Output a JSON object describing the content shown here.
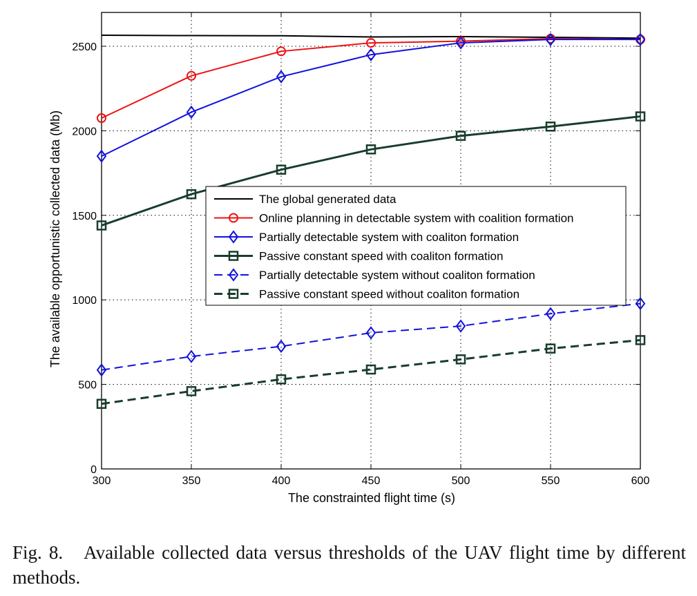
{
  "chart_data": {
    "type": "line",
    "xlabel": "The constrainted flight time (s)",
    "ylabel": "The available opportunistic collected data (Mb)",
    "xlim": [
      300,
      600
    ],
    "ylim": [
      0,
      2700
    ],
    "xticks": [
      300,
      350,
      400,
      450,
      500,
      550,
      600
    ],
    "yticks": [
      0,
      500,
      1000,
      1500,
      2000,
      2500
    ],
    "grid": true,
    "legend_position": "center",
    "x": [
      300,
      350,
      400,
      450,
      500,
      550,
      600
    ],
    "series": [
      {
        "name": "The global generated data",
        "values": [
          2565,
          2563,
          2562,
          2555,
          2557,
          2553,
          2548
        ],
        "color": "#000000",
        "dash": "solid",
        "marker": "none"
      },
      {
        "name": "Online planning in detectable system with coalition formation",
        "values": [
          2075,
          2325,
          2470,
          2520,
          2530,
          2545,
          2540
        ],
        "color": "#ee1111",
        "dash": "solid",
        "marker": "circle"
      },
      {
        "name": "Partially detectable system with coaliton formation",
        "values": [
          1850,
          2110,
          2320,
          2450,
          2520,
          2540,
          2540
        ],
        "color": "#1111dd",
        "dash": "solid",
        "marker": "diamond"
      },
      {
        "name": "Passive constant speed with coaliton formation",
        "values": [
          1440,
          1625,
          1770,
          1890,
          1970,
          2025,
          2085
        ],
        "color": "#183d2c",
        "dash": "solid",
        "marker": "square"
      },
      {
        "name": "Partially detectable system without coaliton formation",
        "values": [
          585,
          665,
          725,
          805,
          845,
          918,
          978
        ],
        "color": "#1111dd",
        "dash": "dashed",
        "marker": "diamond"
      },
      {
        "name": "Passive constant speed without coaliton formation",
        "values": [
          385,
          460,
          530,
          588,
          648,
          712,
          762
        ],
        "color": "#183d2c",
        "dash": "dashed",
        "marker": "square"
      }
    ]
  },
  "caption": {
    "label": "Fig. 8.",
    "text": "Available collected data versus thresholds of the UAV flight time by different methods."
  }
}
